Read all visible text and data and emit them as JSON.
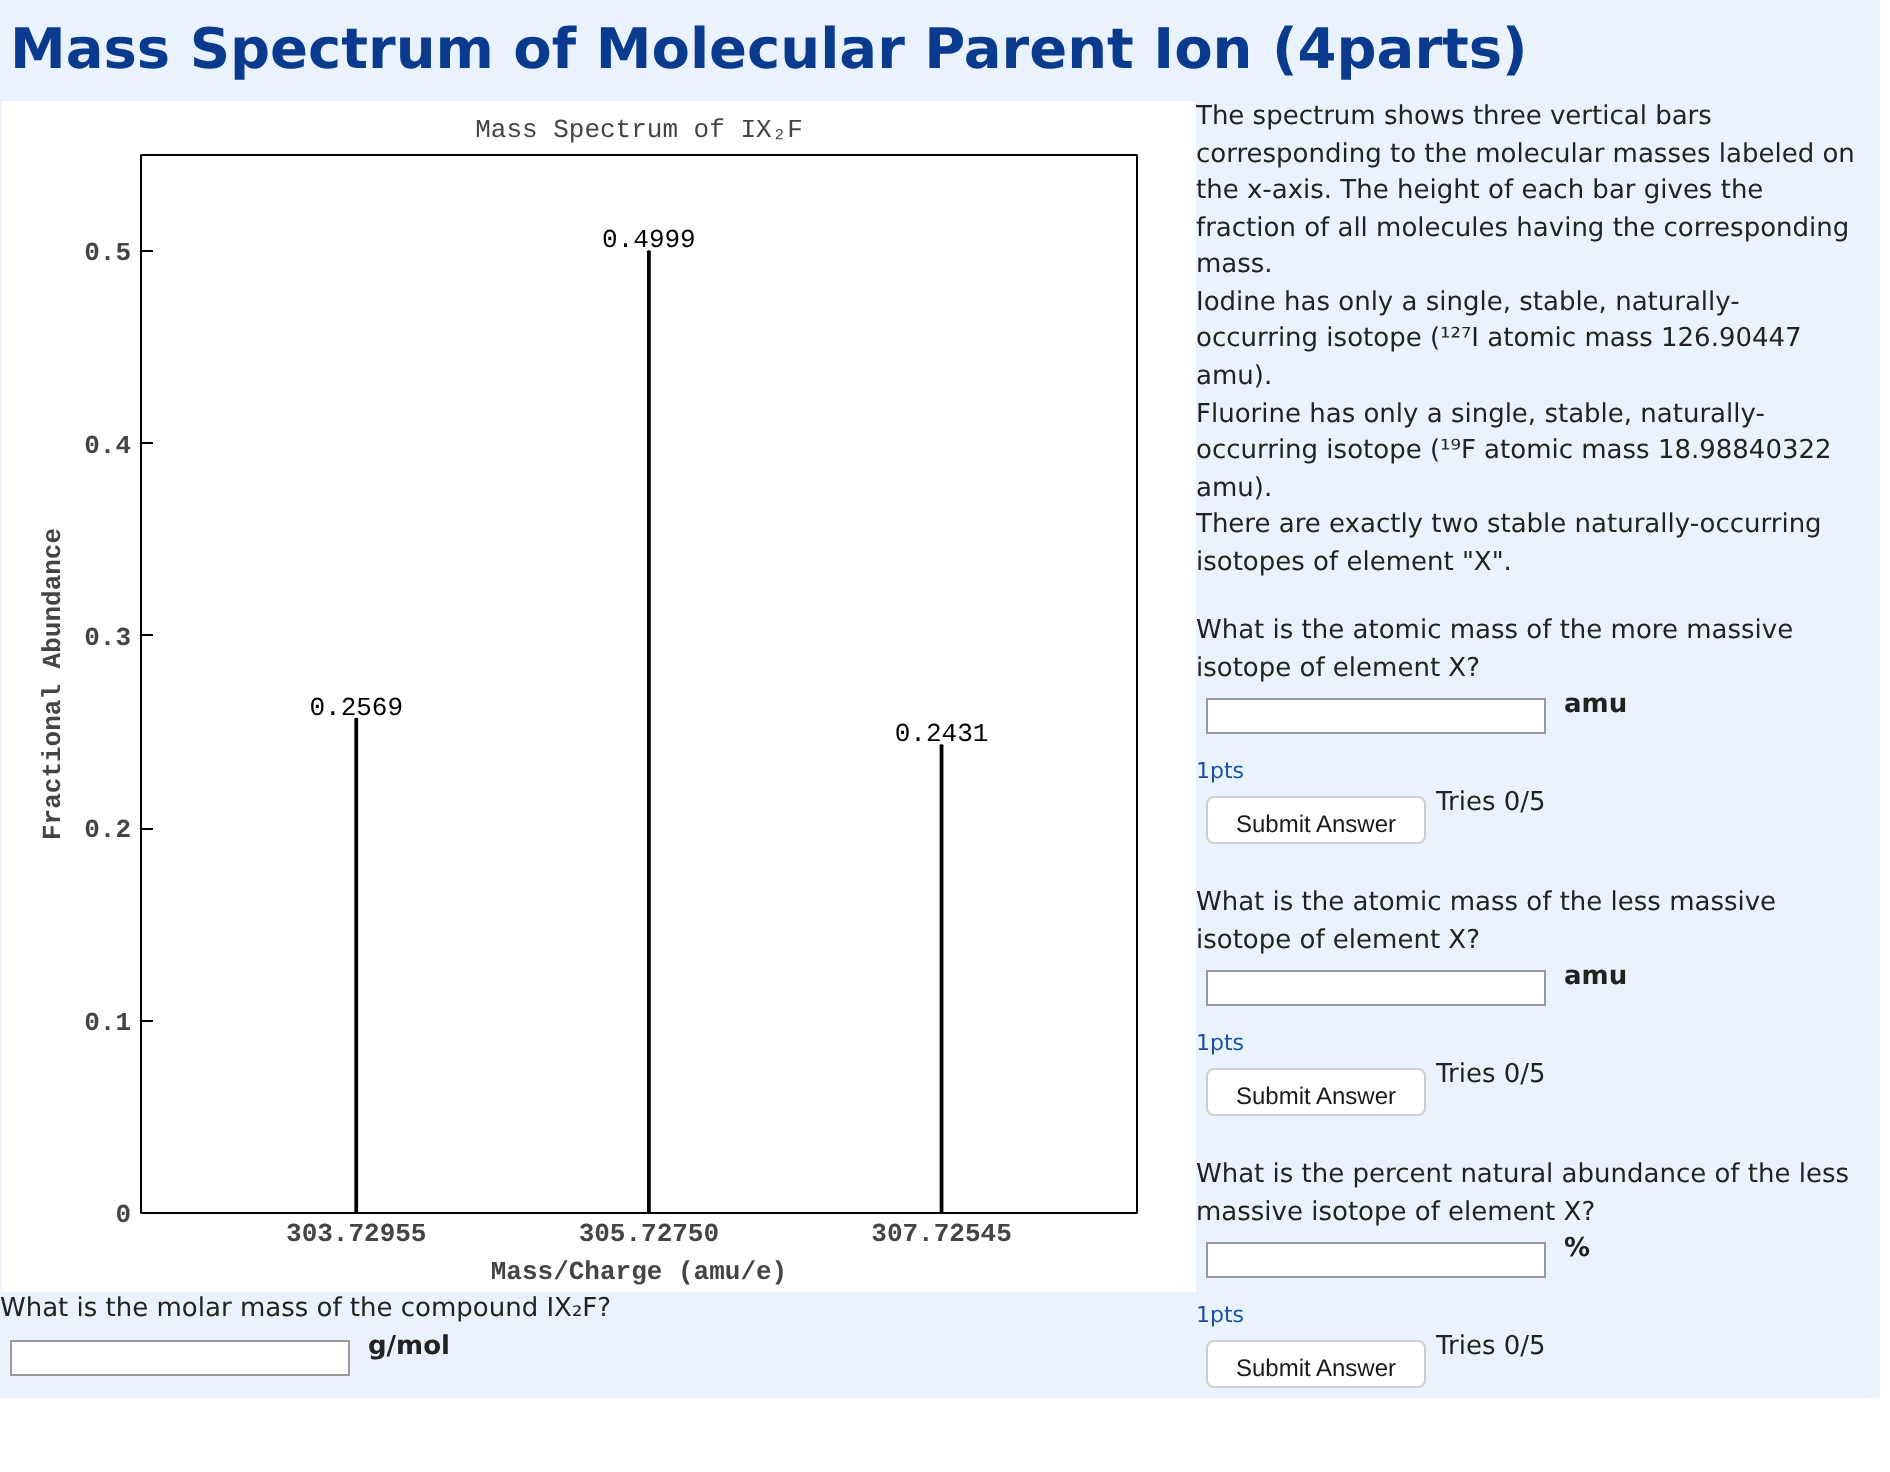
{
  "chart_data": {
    "type": "bar",
    "title": "Mass Spectrum of IX₂F",
    "xlabel": "Mass/Charge (amu/e)",
    "ylabel": "Fractional Abundance",
    "x": [
      303.72955,
      305.7275,
      307.72545
    ],
    "values": [
      0.2569,
      0.4999,
      0.2431
    ],
    "color": "#000000",
    "xlim": [
      302.26,
      309.06
    ],
    "xticks": [
      {
        "value": 303.72955,
        "label": "303.72955"
      },
      {
        "value": 305.7275,
        "label": "305.72750"
      },
      {
        "value": 307.72545,
        "label": "307.72545"
      }
    ],
    "ylim": [
      0,
      0.55
    ],
    "yticks": [
      0,
      0.1,
      0.2,
      0.3,
      0.4,
      0.5
    ],
    "data_labels": true,
    "grid": false,
    "annotations": [
      "Mass Spectrum of Molecular Parent Ion (4parts)",
      "The spectrum shows three vertical bars corresponding to the molecular masses labeled on the x-axis. The height of each bar gives the fraction of all molecules having the corresponding mass.\nIodine has only a single, stable, naturally-occurring isotope (¹²⁷I atomic mass 126.90447 amu).\nFluorine has only a single, stable, naturally-occurring isotope (¹⁹F atomic mass 18.98840322 amu).\nThere are exactly two stable naturally-occurring isotopes of element \"X\".",
      "What is the atomic mass of the more massive isotope of element X?",
      "amu",
      "1pts",
      "Submit Answer",
      "Tries 0/5",
      "What is the atomic mass of the less massive isotope of element X?",
      "amu",
      "1pts",
      "Submit Answer",
      "Tries 0/5",
      "What is the percent natural abundance of the less massive isotope of element X?",
      "%",
      "1pts",
      "Submit Answer",
      "Tries 0/5",
      "What is the molar mass of the compound IX₂F?",
      "g/mol"
    ]
  }
}
